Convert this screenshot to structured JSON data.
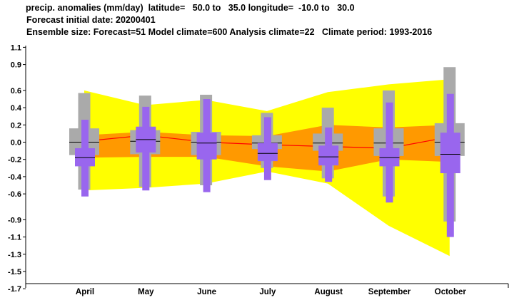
{
  "header": {
    "line1": "precip. anomalies (mm/day)  latitude=   50.0 to   35.0 longitude=  -10.0 to   30.0",
    "line2": "Forecast initial date: 20200401",
    "line3": "Ensemble size: Forecast=51 Model climate=600 Analysis climate=22   Climate period: 1993-2016"
  },
  "chart_data": {
    "type": "box",
    "title": "precip. anomalies (mm/day)",
    "categories": [
      "April",
      "May",
      "June",
      "July",
      "August",
      "September",
      "October"
    ],
    "ylim": [
      -1.7,
      1.2
    ],
    "yticks": [
      1.1,
      0.9,
      0.6,
      0.4,
      0.2,
      0.0,
      -0.2,
      -0.4,
      -0.6,
      -0.9,
      -1.1,
      -1.3,
      -1.5,
      -1.7
    ],
    "ytick_labels": [
      "1.1",
      "0.9",
      "0.6",
      "0.4",
      "0.2",
      "0.0",
      "-0.2",
      "-0.4",
      "-0.6",
      "-0.9",
      "-1.1",
      "-1.3",
      "-1.5",
      "-1.7"
    ],
    "climate_envelope_outer": {
      "color": "#ffff00",
      "upper": [
        0.6,
        0.43,
        0.49,
        0.36,
        0.58,
        0.67,
        0.73
      ],
      "lower": [
        -0.56,
        -0.53,
        -0.48,
        -0.34,
        -0.48,
        -0.97,
        -1.32
      ]
    },
    "climate_envelope_inner": {
      "color": "#ff9900",
      "upper": [
        0.08,
        0.12,
        0.08,
        0.07,
        0.2,
        0.17,
        0.2
      ],
      "lower": [
        -0.18,
        -0.17,
        -0.17,
        -0.28,
        -0.34,
        -0.2,
        -0.23
      ]
    },
    "analysis_line": {
      "color": "#ff0000",
      "values": [
        0.01,
        0.08,
        0.0,
        -0.03,
        -0.05,
        -0.07,
        0.06
      ]
    },
    "model_climate": {
      "color": "#aaaaaa",
      "whisker_low": [
        -0.55,
        -0.52,
        -0.5,
        -0.3,
        -0.42,
        -0.63,
        -0.92
      ],
      "box_low": [
        -0.15,
        -0.14,
        -0.15,
        -0.08,
        -0.1,
        -0.16,
        -0.16
      ],
      "median": [
        0.0,
        0.01,
        0.0,
        -0.01,
        -0.01,
        -0.01,
        0.0
      ],
      "box_high": [
        0.16,
        0.14,
        0.12,
        0.08,
        0.1,
        0.16,
        0.22
      ],
      "whisker_high": [
        0.57,
        0.54,
        0.55,
        0.34,
        0.4,
        0.6,
        0.87
      ]
    },
    "forecast": {
      "color": "#9966ee",
      "whisker_low": [
        -0.63,
        -0.56,
        -0.58,
        -0.44,
        -0.46,
        -0.7,
        -1.1
      ],
      "box_low": [
        -0.28,
        -0.12,
        -0.2,
        -0.22,
        -0.27,
        -0.28,
        -0.36
      ],
      "median": [
        -0.18,
        0.03,
        -0.01,
        -0.13,
        -0.17,
        -0.18,
        -0.14
      ],
      "box_high": [
        -0.07,
        0.18,
        0.11,
        -0.01,
        -0.04,
        -0.07,
        0.11
      ],
      "whisker_high": [
        0.26,
        0.41,
        0.5,
        0.29,
        0.17,
        0.46,
        0.56
      ]
    }
  }
}
